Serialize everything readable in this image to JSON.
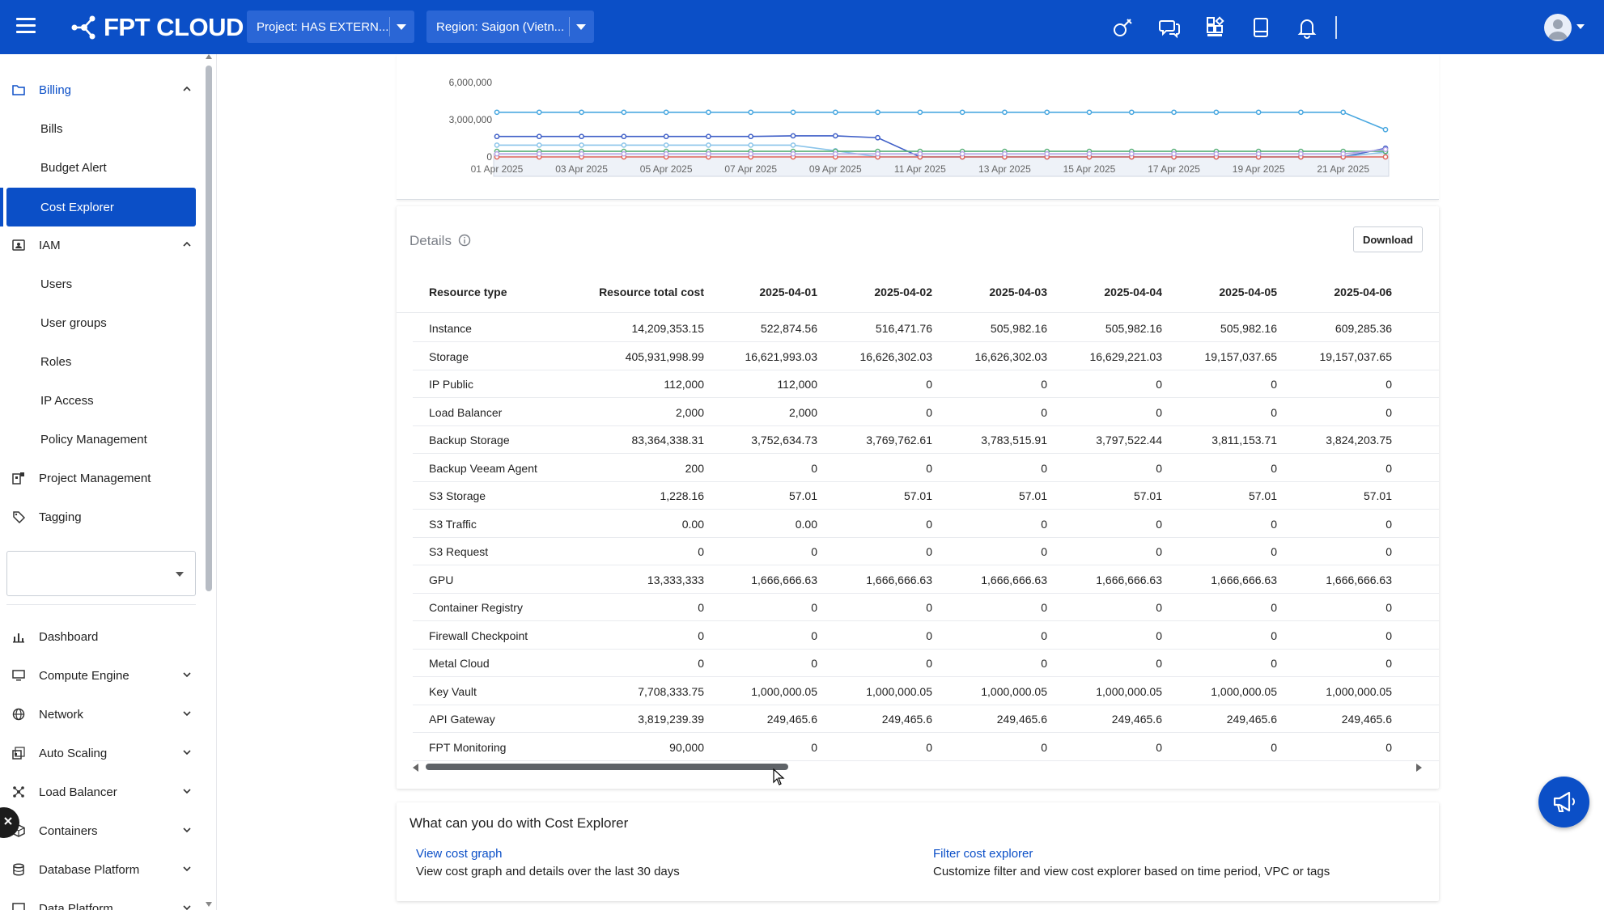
{
  "header": {
    "logo_text": "FPT CLOUD",
    "project_select": "Project: HAS EXTERN...",
    "region_select": "Region: Saigon (Vietn..."
  },
  "sidebar": {
    "billing": "Billing",
    "bills": "Bills",
    "budget_alert": "Budget Alert",
    "cost_explorer": "Cost Explorer",
    "iam": "IAM",
    "users": "Users",
    "user_groups": "User groups",
    "roles": "Roles",
    "ip_access": "IP Access",
    "policy_management": "Policy Management",
    "project_management": "Project Management",
    "tagging": "Tagging",
    "dashboard": "Dashboard",
    "compute_engine": "Compute Engine",
    "network": "Network",
    "auto_scaling": "Auto Scaling",
    "load_balancer": "Load Balancer",
    "containers": "Containers",
    "database_platform": "Database Platform",
    "data_platform": "Data Platform"
  },
  "chart": {
    "y_ticks": [
      "6,000,000",
      "3,000,000",
      "0"
    ],
    "x_ticks": [
      "01 Apr 2025",
      "03 Apr 2025",
      "05 Apr 2025",
      "07 Apr 2025",
      "09 Apr 2025",
      "11 Apr 2025",
      "13 Apr 2025",
      "15 Apr 2025",
      "17 Apr 2025",
      "19 Apr 2025",
      "21 Apr 2025"
    ]
  },
  "chart_data": {
    "type": "line",
    "ylim": [
      0,
      6000000
    ],
    "x_count": 22,
    "series": [
      {
        "color": "#4aa8e0",
        "values": [
          3600000,
          3600000,
          3600000,
          3600000,
          3600000,
          3600000,
          3600000,
          3600000,
          3600000,
          3600000,
          3600000,
          3600000,
          3600000,
          3600000,
          3600000,
          3600000,
          3600000,
          3600000,
          3600000,
          3600000,
          3600000,
          2200000
        ]
      },
      {
        "color": "#3f5fc7",
        "values": [
          1650000,
          1650000,
          1650000,
          1650000,
          1650000,
          1650000,
          1650000,
          1700000,
          1700000,
          1550000,
          0,
          0,
          0,
          0,
          0,
          0,
          0,
          0,
          0,
          0,
          0,
          700000
        ]
      },
      {
        "color": "#8ac4ea",
        "values": [
          950000,
          950000,
          950000,
          950000,
          950000,
          950000,
          950000,
          950000,
          500000,
          0,
          0,
          0,
          0,
          0,
          0,
          0,
          0,
          0,
          0,
          0,
          0,
          400000
        ]
      },
      {
        "color": "#5ab07a",
        "values": [
          450000,
          450000,
          450000,
          450000,
          450000,
          450000,
          450000,
          450000,
          450000,
          450000,
          450000,
          450000,
          450000,
          450000,
          450000,
          450000,
          450000,
          450000,
          450000,
          450000,
          450000,
          450000
        ]
      },
      {
        "color": "#e0655a",
        "values": [
          0,
          0,
          0,
          0,
          0,
          0,
          0,
          0,
          0,
          0,
          0,
          0,
          0,
          0,
          0,
          0,
          0,
          0,
          0,
          0,
          0,
          0
        ]
      },
      {
        "color": "#b7a6e6",
        "values": [
          250000,
          250000,
          250000,
          250000,
          250000,
          250000,
          250000,
          250000,
          250000,
          250000,
          250000,
          250000,
          250000,
          250000,
          250000,
          250000,
          250000,
          250000,
          250000,
          250000,
          250000,
          600000
        ]
      }
    ]
  },
  "details": {
    "title": "Details",
    "download": "Download",
    "columns": [
      "Resource type",
      "Resource total cost",
      "2025-04-01",
      "2025-04-02",
      "2025-04-03",
      "2025-04-04",
      "2025-04-05",
      "2025-04-06"
    ],
    "rows": [
      [
        "Instance",
        "14,209,353.15",
        "522,874.56",
        "516,471.76",
        "505,982.16",
        "505,982.16",
        "505,982.16",
        "609,285.36"
      ],
      [
        "Storage",
        "405,931,998.99",
        "16,621,993.03",
        "16,626,302.03",
        "16,626,302.03",
        "16,629,221.03",
        "19,157,037.65",
        "19,157,037.65"
      ],
      [
        "IP Public",
        "112,000",
        "112,000",
        "0",
        "0",
        "0",
        "0",
        "0"
      ],
      [
        "Load Balancer",
        "2,000",
        "2,000",
        "0",
        "0",
        "0",
        "0",
        "0"
      ],
      [
        "Backup Storage",
        "83,364,338.31",
        "3,752,634.73",
        "3,769,762.61",
        "3,783,515.91",
        "3,797,522.44",
        "3,811,153.71",
        "3,824,203.75"
      ],
      [
        "Backup Veeam Agent",
        "200",
        "0",
        "0",
        "0",
        "0",
        "0",
        "0"
      ],
      [
        "S3 Storage",
        "1,228.16",
        "57.01",
        "57.01",
        "57.01",
        "57.01",
        "57.01",
        "57.01"
      ],
      [
        "S3 Traffic",
        "0.00",
        "0.00",
        "0",
        "0",
        "0",
        "0",
        "0"
      ],
      [
        "S3 Request",
        "0",
        "0",
        "0",
        "0",
        "0",
        "0",
        "0"
      ],
      [
        "GPU",
        "13,333,333",
        "1,666,666.63",
        "1,666,666.63",
        "1,666,666.63",
        "1,666,666.63",
        "1,666,666.63",
        "1,666,666.63"
      ],
      [
        "Container Registry",
        "0",
        "0",
        "0",
        "0",
        "0",
        "0",
        "0"
      ],
      [
        "Firewall Checkpoint",
        "0",
        "0",
        "0",
        "0",
        "0",
        "0",
        "0"
      ],
      [
        "Metal Cloud",
        "0",
        "0",
        "0",
        "0",
        "0",
        "0",
        "0"
      ],
      [
        "Key Vault",
        "7,708,333.75",
        "1,000,000.05",
        "1,000,000.05",
        "1,000,000.05",
        "1,000,000.05",
        "1,000,000.05",
        "1,000,000.05"
      ],
      [
        "API Gateway",
        "3,819,239.39",
        "249,465.6",
        "249,465.6",
        "249,465.6",
        "249,465.6",
        "249,465.6",
        "249,465.6"
      ],
      [
        "FPT Monitoring",
        "90,000",
        "0",
        "0",
        "0",
        "0",
        "0",
        "0"
      ]
    ]
  },
  "help": {
    "title": "What can you do with Cost Explorer",
    "link1": "View cost graph",
    "desc1": "View cost graph and details over the last 30 days",
    "link2": "Filter cost explorer",
    "desc2": "Customize filter and view cost explorer based on time period, VPC or tags"
  }
}
